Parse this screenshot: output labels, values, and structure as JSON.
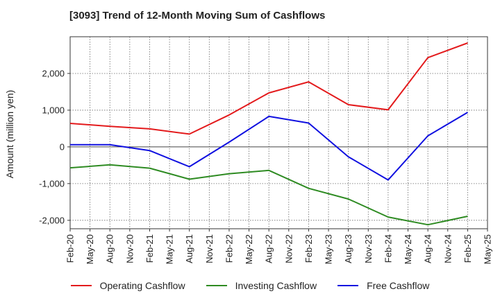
{
  "chart_data": {
    "type": "line",
    "title": "[3093]  Trend of 12-Month Moving Sum of Cashflows",
    "xlabel": "",
    "ylabel": "Amount (million yen)",
    "x_ticks": [
      "Feb-20",
      "May-20",
      "Aug-20",
      "Nov-20",
      "Feb-21",
      "May-21",
      "Aug-21",
      "Nov-21",
      "Feb-22",
      "May-22",
      "Aug-22",
      "Nov-22",
      "Feb-23",
      "May-23",
      "Aug-23",
      "Nov-23",
      "Feb-24",
      "May-24",
      "Aug-24",
      "Nov-24",
      "Feb-25",
      "May-25"
    ],
    "y_ticks": [
      2000,
      1000,
      0,
      -1000,
      -2000
    ],
    "y_tick_labels": [
      "2,000",
      "1,000",
      "0",
      "-1,000",
      "-2,000"
    ],
    "ylim": [
      -2230,
      3000
    ],
    "grid": true,
    "legend_position": "bottom",
    "x": [
      "Feb-20",
      "Aug-20",
      "Feb-21",
      "Aug-21",
      "Feb-22",
      "Aug-22",
      "Feb-23",
      "Aug-23",
      "Feb-24",
      "Aug-24",
      "Feb-25"
    ],
    "series": [
      {
        "name": "Operating Cashflow",
        "color": "#e31a1c",
        "values": [
          640,
          560,
          490,
          350,
          870,
          1470,
          1770,
          1150,
          1010,
          2430,
          2830
        ]
      },
      {
        "name": "Investing Cashflow",
        "color": "#2e8b22",
        "values": [
          -570,
          -490,
          -580,
          -880,
          -730,
          -640,
          -1130,
          -1420,
          -1910,
          -2120,
          -1890
        ]
      },
      {
        "name": "Free Cashflow",
        "color": "#1010e0",
        "values": [
          60,
          60,
          -100,
          -540,
          130,
          830,
          650,
          -270,
          -900,
          300,
          940
        ]
      }
    ]
  }
}
